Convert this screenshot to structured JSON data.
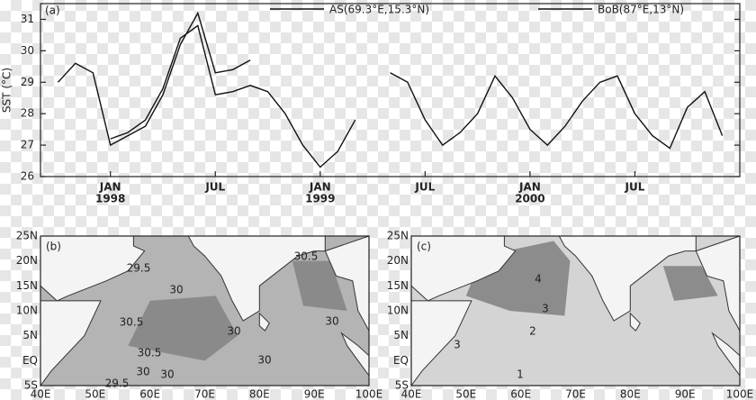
{
  "chart_data": {
    "type": "line",
    "label": "(a)",
    "y_label": "SST (°C)",
    "x": [
      "1997-10",
      "1997-11",
      "1997-12",
      "1998-01",
      "1998-02",
      "1998-03",
      "1998-04",
      "1998-05",
      "1998-06",
      "1998-07",
      "1998-08",
      "1998-09",
      "1998-10",
      "1998-11",
      "1998-12",
      "1999-01",
      "1999-02",
      "1999-03",
      "1999-04",
      "1999-05",
      "1999-06",
      "1999-07",
      "1999-08",
      "1999-09",
      "1999-10",
      "1999-11",
      "1999-12",
      "2000-01",
      "2000-02",
      "2000-03",
      "2000-04",
      "2000-05",
      "2000-06",
      "2000-07",
      "2000-08",
      "2000-09",
      "2000-10",
      "2000-11",
      "2000-12"
    ],
    "series": [
      {
        "name": "AS(69.3°E,15.3°N)",
        "color": "#111111",
        "values": [
          29.0,
          29.6,
          29.3,
          27.0,
          27.3,
          27.6,
          28.6,
          30.2,
          31.2,
          29.3,
          29.4,
          29.7,
          null,
          null,
          null,
          null,
          null,
          null,
          null,
          null,
          null,
          null,
          null,
          null,
          null,
          null,
          null,
          null,
          null,
          null,
          null,
          null,
          null,
          null,
          null,
          null,
          null,
          null,
          null
        ]
      },
      {
        "name": "BoB(87°E,13°N)",
        "color": "#111111",
        "values": [
          null,
          null,
          null,
          27.2,
          27.4,
          27.8,
          28.8,
          30.4,
          30.8,
          28.6,
          28.7,
          28.9,
          28.7,
          28.0,
          27.0,
          26.3,
          26.8,
          27.8,
          null,
          29.3,
          29.0,
          27.8,
          27.0,
          27.4,
          28.0,
          29.2,
          28.5,
          27.5,
          27.0,
          27.6,
          28.4,
          29.0,
          29.2,
          28.0,
          27.3,
          26.9,
          28.2,
          28.7,
          27.3
        ]
      }
    ],
    "xlim": [
      "1997-09",
      "2001-01"
    ],
    "xticks": [
      {
        "value": "1998-01",
        "label": "JAN"
      },
      {
        "value": "1998-07",
        "label": "JUL"
      },
      {
        "value": "1999-01",
        "label": "JAN"
      },
      {
        "value": "1999-07",
        "label": "JUL"
      },
      {
        "value": "2000-01",
        "label": "JAN"
      },
      {
        "value": "2000-07",
        "label": "JUL"
      }
    ],
    "x_year_labels": [
      {
        "value": "1998-01",
        "label": "1998"
      },
      {
        "value": "1999-01",
        "label": "1999"
      },
      {
        "value": "2000-01",
        "label": "2000"
      }
    ],
    "ylim": [
      26,
      31.5
    ],
    "yticks": [
      26,
      27,
      28,
      29,
      30,
      31
    ]
  },
  "maps": [
    {
      "label": "(b)",
      "lon_labels": [
        "40E",
        "50E",
        "60E",
        "70E",
        "80E",
        "90E",
        "100E"
      ],
      "lat_labels": [
        "25N",
        "20N",
        "15N",
        "10N",
        "5N",
        "EQ",
        "5S"
      ],
      "contour_labels": [
        "29.5",
        "30.5",
        "30",
        "30.5",
        "30",
        "30",
        "30.5",
        "30",
        "30",
        "30",
        "29.5"
      ]
    },
    {
      "label": "(c)",
      "lon_labels": [
        "40E",
        "50E",
        "60E",
        "70E",
        "80E",
        "90E",
        "100E"
      ],
      "lat_labels": [
        "25N",
        "20N",
        "15N",
        "10N",
        "5N",
        "EQ",
        "5S"
      ],
      "contour_labels": [
        "4",
        "3",
        "2",
        "3",
        "1"
      ]
    }
  ]
}
